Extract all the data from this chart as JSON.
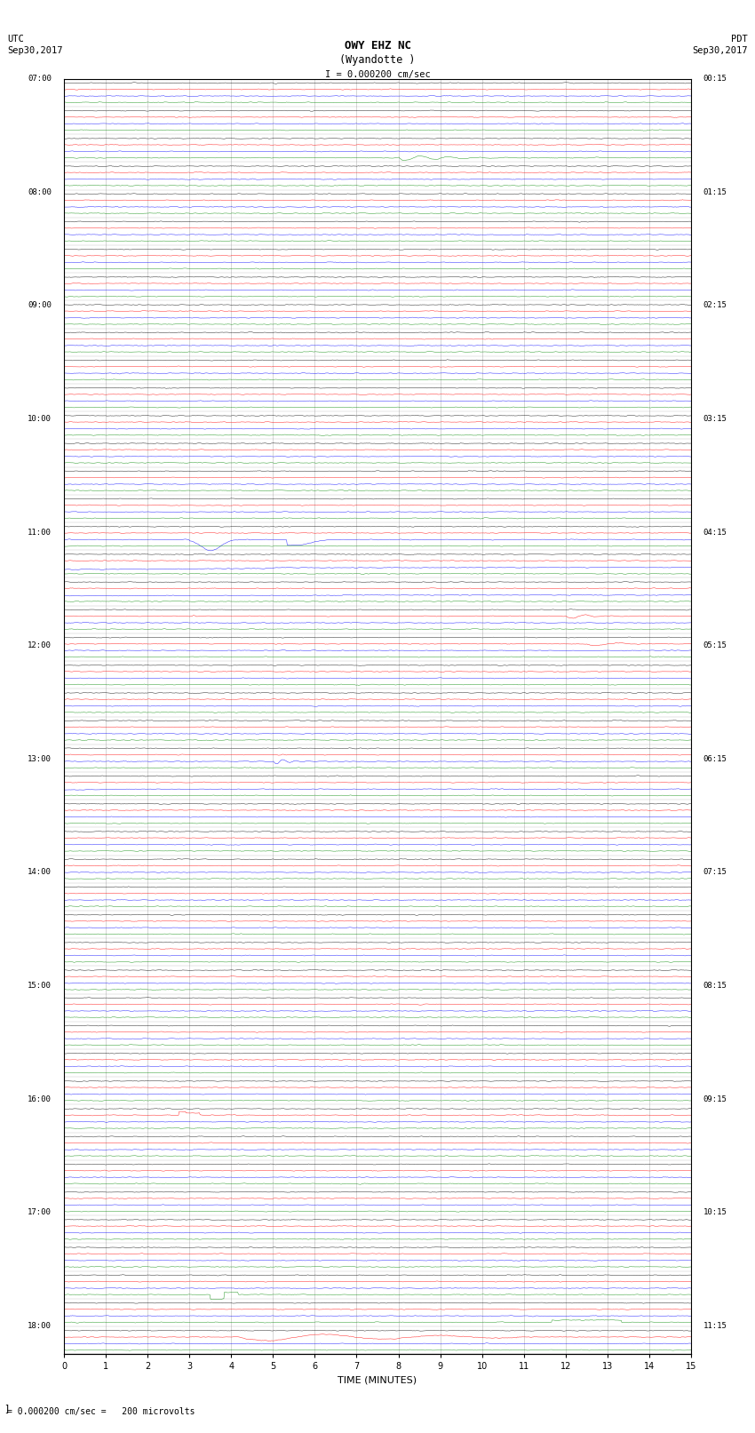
{
  "title_line1": "OWY EHZ NC",
  "title_line2": "(Wyandotte )",
  "title_scale": "I = 0.000200 cm/sec",
  "label_left_top": "UTC",
  "label_left_date": "Sep30,2017",
  "label_right_top": "PDT",
  "label_right_date": "Sep30,2017",
  "xlabel": "TIME (MINUTES)",
  "bottom_note": "= 0.000200 cm/sec =   200 microvolts",
  "xlim": [
    0,
    15
  ],
  "xticks": [
    0,
    1,
    2,
    3,
    4,
    5,
    6,
    7,
    8,
    9,
    10,
    11,
    12,
    13,
    14,
    15
  ],
  "n_rows": 46,
  "bg_color": "#ffffff",
  "grid_color": "#888888",
  "trace_colors": [
    "#000000",
    "#ff0000",
    "#0000ff",
    "#008800"
  ],
  "seed": 42
}
